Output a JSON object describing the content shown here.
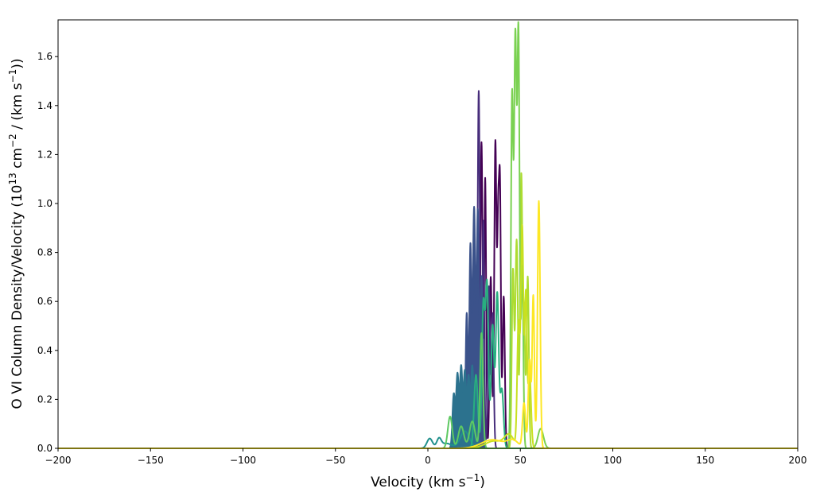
{
  "chart_data": {
    "type": "line",
    "xlabel": "Velocity (km s",
    "xlabel_sup": "−1",
    "xlabel_end": ")",
    "ylabel_parts": [
      "O VI Column Density/Velocity (10",
      "13",
      " cm",
      "−2",
      " / (km s",
      "−1",
      "))"
    ],
    "xlim": [
      -200,
      200
    ],
    "ylim": [
      0,
      1.75
    ],
    "xticks": [
      -200,
      -150,
      -100,
      -50,
      0,
      50,
      100,
      150,
      200
    ],
    "xtick_labels": [
      "−200",
      "−150",
      "−100",
      "−50",
      "0",
      "50",
      "100",
      "150",
      "200"
    ],
    "yticks": [
      0.0,
      0.2,
      0.4,
      0.6,
      0.8,
      1.0,
      1.2,
      1.4,
      1.6
    ],
    "ytick_labels": [
      "0.0",
      "0.2",
      "0.4",
      "0.6",
      "0.8",
      "1.0",
      "1.2",
      "1.4",
      "1.6"
    ],
    "grid": false,
    "colormap": "viridis",
    "series": [
      {
        "color": "#440154",
        "fill": false,
        "peaks": [
          [
            29,
            1.25,
            0.6
          ],
          [
            31,
            1.1,
            0.5
          ],
          [
            36.5,
            1.25,
            0.6
          ],
          [
            39,
            1.0,
            0.5
          ],
          [
            34,
            0.7,
            0.6
          ],
          [
            38,
            0.84,
            0.5
          ],
          [
            41,
            0.62,
            0.6
          ],
          [
            25,
            0.75,
            0.7
          ]
        ]
      },
      {
        "color": "#472d7b",
        "fill": false,
        "peaks": [
          [
            27.5,
            1.46,
            0.6
          ],
          [
            30,
            0.93,
            0.5
          ],
          [
            33,
            0.66,
            0.6
          ],
          [
            35,
            0.55,
            0.6
          ]
        ]
      },
      {
        "color": "#3b528b",
        "fill": true,
        "peaks": [
          [
            23,
            0.82,
            0.6
          ],
          [
            25,
            0.98,
            0.7
          ],
          [
            27,
            0.95,
            0.6
          ],
          [
            29,
            0.7,
            0.7
          ],
          [
            21,
            0.55,
            0.6
          ]
        ]
      },
      {
        "color": "#2c728e",
        "fill": true,
        "peaks": [
          [
            14,
            0.22,
            0.7
          ],
          [
            16,
            0.3,
            0.7
          ],
          [
            18,
            0.33,
            0.7
          ],
          [
            20,
            0.31,
            0.7
          ],
          [
            22,
            0.29,
            0.7
          ],
          [
            24,
            0.33,
            0.7
          ],
          [
            26,
            0.25,
            0.7
          ]
        ]
      },
      {
        "color": "#21918c",
        "fill": false,
        "peaks": [
          [
            1,
            0.04,
            1.5
          ],
          [
            6,
            0.035,
            1.2
          ],
          [
            10,
            0.02,
            3.0
          ],
          [
            20,
            0.07,
            2.5
          ]
        ]
      },
      {
        "color": "#28ae80",
        "fill": false,
        "peaks": [
          [
            30,
            0.58,
            0.8
          ],
          [
            32,
            0.66,
            0.8
          ],
          [
            35,
            0.5,
            0.8
          ],
          [
            37.5,
            0.63,
            0.8
          ],
          [
            26,
            0.3,
            1.0
          ],
          [
            40,
            0.24,
            0.9
          ]
        ]
      },
      {
        "color": "#5ec962",
        "fill": false,
        "peaks": [
          [
            12,
            0.13,
            1.2
          ],
          [
            18,
            0.09,
            1.5
          ],
          [
            24,
            0.11,
            1.5
          ],
          [
            29,
            0.47,
            0.8
          ]
        ]
      },
      {
        "color": "#addc30",
        "fill": false,
        "peaks": [
          [
            46,
            0.72,
            0.6
          ],
          [
            48,
            0.85,
            0.7
          ],
          [
            50.5,
            1.1,
            0.6
          ],
          [
            52,
            0.52,
            0.6
          ],
          [
            54,
            0.7,
            0.6
          ]
        ]
      },
      {
        "color": "#7ad151",
        "fill": false,
        "peaks": [
          [
            45.5,
            1.4,
            0.6
          ],
          [
            47.3,
            1.67,
            0.7
          ],
          [
            49,
            1.64,
            0.6
          ],
          [
            51,
            0.74,
            0.6
          ],
          [
            61,
            0.08,
            1.5
          ]
        ]
      },
      {
        "color": "#c8e020",
        "fill": false,
        "peaks": [
          [
            49,
            0.5,
            0.7
          ],
          [
            51,
            0.9,
            0.7
          ],
          [
            53,
            0.62,
            0.6
          ],
          [
            55,
            0.3,
            0.8
          ],
          [
            44,
            0.05,
            2.5
          ],
          [
            36,
            0.03,
            5.0
          ]
        ]
      },
      {
        "color": "#fde725",
        "fill": false,
        "peaks": [
          [
            57,
            0.62,
            0.6
          ],
          [
            60,
            1.01,
            0.7
          ],
          [
            55,
            0.36,
            0.7
          ],
          [
            52,
            0.18,
            0.8
          ],
          [
            35,
            0.035,
            6.0
          ],
          [
            46,
            0.03,
            3.0
          ]
        ]
      }
    ]
  }
}
